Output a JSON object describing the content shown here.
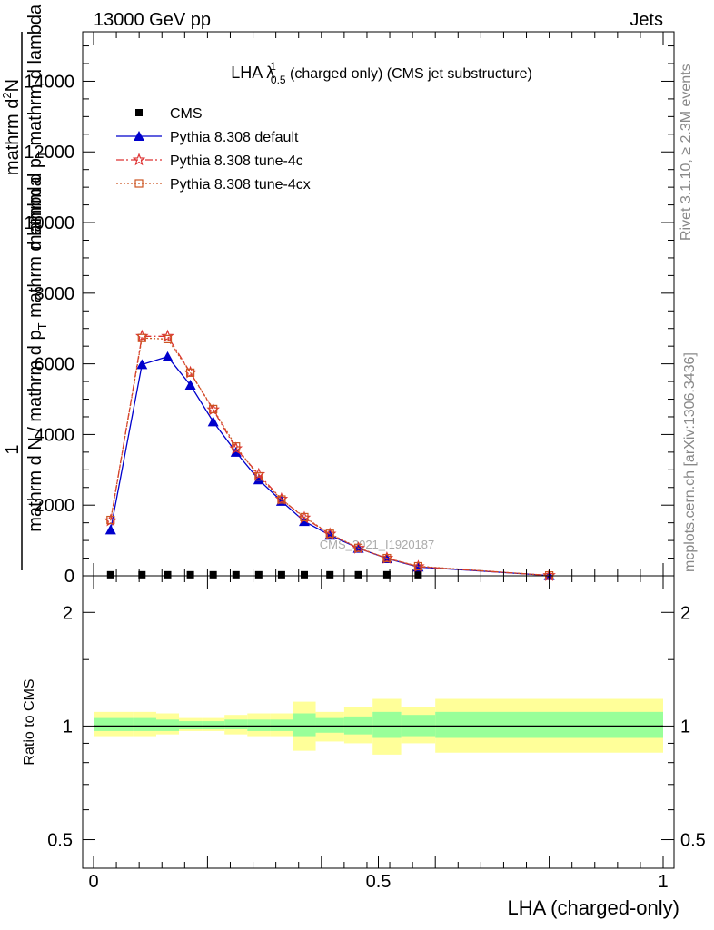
{
  "header": {
    "energy": "13000 GeV pp",
    "category": "Jets"
  },
  "side_labels": {
    "rivet": "Rivet 3.1.10, ≥ 2.3M events",
    "mcplots": "mcplots.cern.ch [arXiv:1306.3436]"
  },
  "chart_data": [
    {
      "type": "line",
      "title": "LHA λ",
      "title_sup": "1",
      "title_sub": "0.5",
      "title_rest": " (charged only) (CMS jet substructure)",
      "watermark": "CMS_2021_I1920187",
      "ylabel_frac_top": "1",
      "ylabel_frac_bottom": "mathrm d N / mathrm d p",
      "ylabel_frac_bottom_sub": "T",
      "ylabel_frac_bottom_rest": " mathrm d lambda",
      "ylabel_right_top": "mathrm d",
      "ylabel_right_top_sup": "2",
      "ylabel_right_top_rest": "N",
      "ylabel_right_bottom": "mathrm d p",
      "ylabel_right_bottom_sub": "T",
      "ylabel_right_bottom_rest": " mathrm d lambda",
      "ylim": [
        0,
        15400
      ],
      "xlim": [
        0,
        1
      ],
      "yticks": [
        {
          "v": 0,
          "label": "0"
        },
        {
          "v": 2000,
          "label": "2000"
        },
        {
          "v": 4000,
          "label": "4000"
        },
        {
          "v": 6000,
          "label": "6000"
        },
        {
          "v": 8000,
          "label": "8000"
        },
        {
          "v": 10000,
          "label": "10000"
        },
        {
          "v": 12000,
          "label": "12000"
        },
        {
          "v": 14000,
          "label": "14000"
        }
      ],
      "legend_position": "top-left",
      "series": [
        {
          "name": "CMS",
          "color": "#000000",
          "marker": "square",
          "x": [
            0.03,
            0.085,
            0.13,
            0.17,
            0.21,
            0.25,
            0.29,
            0.33,
            0.37,
            0.415,
            0.465,
            0.515,
            0.57
          ],
          "y": [
            30,
            30,
            30,
            30,
            30,
            30,
            30,
            30,
            30,
            30,
            30,
            30,
            30
          ]
        },
        {
          "name": "Pythia 8.308 default",
          "color": "#0000cc",
          "marker": "triangle",
          "dash": "",
          "x": [
            0.03,
            0.085,
            0.13,
            0.17,
            0.21,
            0.25,
            0.29,
            0.33,
            0.37,
            0.415,
            0.465,
            0.515,
            0.57,
            0.8
          ],
          "y": [
            1300,
            5980,
            6200,
            5400,
            4360,
            3500,
            2720,
            2110,
            1540,
            1150,
            780,
            490,
            250,
            10
          ]
        },
        {
          "name": "Pythia 8.308 tune-4c",
          "color": "#dd3333",
          "marker": "star",
          "dash": "8,3,2,3",
          "x": [
            0.03,
            0.085,
            0.13,
            0.17,
            0.21,
            0.25,
            0.29,
            0.33,
            0.37,
            0.415,
            0.465,
            0.515,
            0.57,
            0.8
          ],
          "y": [
            1560,
            6780,
            6780,
            5750,
            4700,
            3600,
            2870,
            2170,
            1640,
            1180,
            780,
            500,
            260,
            10
          ]
        },
        {
          "name": "Pythia 8.308 tune-4cx",
          "color": "#cc5522",
          "marker": "open-square",
          "dash": "2,2",
          "x": [
            0.03,
            0.085,
            0.13,
            0.17,
            0.21,
            0.25,
            0.29,
            0.33,
            0.37,
            0.415,
            0.465,
            0.515,
            0.57,
            0.8
          ],
          "y": [
            1580,
            6730,
            6700,
            5750,
            4720,
            3660,
            2810,
            2160,
            1660,
            1190,
            790,
            500,
            270,
            10
          ]
        }
      ]
    },
    {
      "type": "area",
      "ylabel": "Ratio to CMS",
      "xlabel": "LHA (charged-only)",
      "log_scale_y": true,
      "ylim": [
        0.42,
        2.5
      ],
      "xlim": [
        0,
        1
      ],
      "yticks": [
        {
          "v": 0.5,
          "label": "0.5"
        },
        {
          "v": 1,
          "label": "1"
        },
        {
          "v": 2,
          "label": "2"
        }
      ],
      "xticks": [
        {
          "v": 0,
          "label": "0"
        },
        {
          "v": 0.5,
          "label": "0.5"
        },
        {
          "v": 1,
          "label": "1"
        }
      ],
      "bands": [
        {
          "x0": 0.0,
          "x1": 0.07,
          "in": [
            0.97,
            1.05
          ],
          "out": [
            0.94,
            1.09
          ]
        },
        {
          "x0": 0.07,
          "x1": 0.11,
          "in": [
            0.97,
            1.05
          ],
          "out": [
            0.94,
            1.09
          ]
        },
        {
          "x0": 0.11,
          "x1": 0.15,
          "in": [
            0.97,
            1.04
          ],
          "out": [
            0.95,
            1.08
          ]
        },
        {
          "x0": 0.15,
          "x1": 0.19,
          "in": [
            0.98,
            1.03
          ],
          "out": [
            0.97,
            1.05
          ]
        },
        {
          "x0": 0.19,
          "x1": 0.23,
          "in": [
            0.98,
            1.03
          ],
          "out": [
            0.97,
            1.05
          ]
        },
        {
          "x0": 0.23,
          "x1": 0.27,
          "in": [
            0.98,
            1.04
          ],
          "out": [
            0.95,
            1.07
          ]
        },
        {
          "x0": 0.27,
          "x1": 0.31,
          "in": [
            0.97,
            1.04
          ],
          "out": [
            0.94,
            1.08
          ]
        },
        {
          "x0": 0.31,
          "x1": 0.35,
          "in": [
            0.97,
            1.04
          ],
          "out": [
            0.94,
            1.08
          ]
        },
        {
          "x0": 0.35,
          "x1": 0.39,
          "in": [
            0.94,
            1.08
          ],
          "out": [
            0.86,
            1.16
          ]
        },
        {
          "x0": 0.39,
          "x1": 0.44,
          "in": [
            0.96,
            1.05
          ],
          "out": [
            0.91,
            1.09
          ]
        },
        {
          "x0": 0.44,
          "x1": 0.49,
          "in": [
            0.95,
            1.06
          ],
          "out": [
            0.9,
            1.12
          ]
        },
        {
          "x0": 0.49,
          "x1": 0.54,
          "in": [
            0.93,
            1.09
          ],
          "out": [
            0.84,
            1.18
          ]
        },
        {
          "x0": 0.54,
          "x1": 0.6,
          "in": [
            0.94,
            1.07
          ],
          "out": [
            0.9,
            1.12
          ]
        },
        {
          "x0": 0.6,
          "x1": 1.0,
          "in": [
            0.93,
            1.09
          ],
          "out": [
            0.85,
            1.18
          ]
        }
      ],
      "inner_color": "#99ff99",
      "outer_color": "#ffff99",
      "reference_line": 1
    }
  ]
}
